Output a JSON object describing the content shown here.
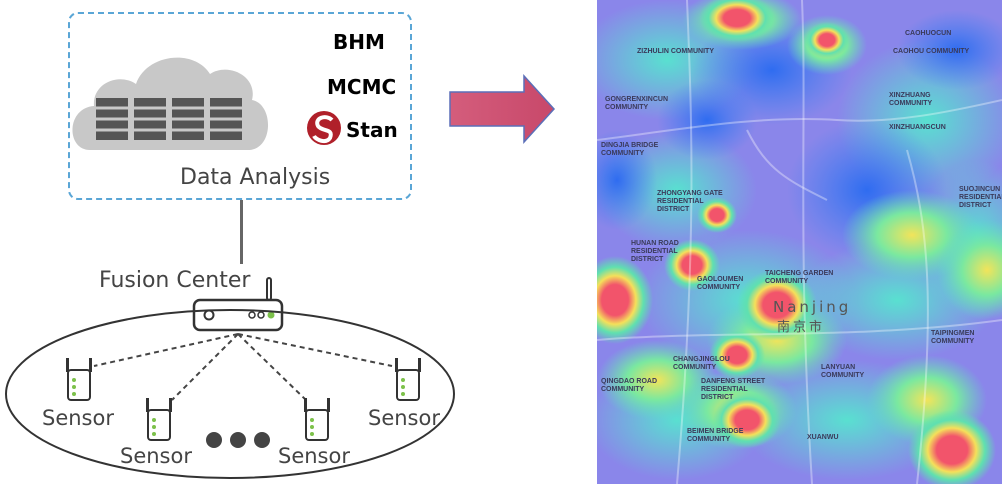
{
  "data_analysis": {
    "label": "Data Analysis",
    "tools": [
      "BHM",
      "MCMC",
      "Stan"
    ]
  },
  "fusion_center": {
    "label": "Fusion Center"
  },
  "sensors": {
    "label": "Sensor"
  },
  "map": {
    "labels": [
      "ZHONGYANG GATE RESIDENTIAL DISTRICT",
      "ZIZHULIN COMMUNITY",
      "GONGRENXINCUN COMMUNITY",
      "DINGJIA BRIDGE COMMUNITY",
      "HUNAN ROAD RESIDENTIAL DISTRICT",
      "GAOLOUMEN COMMUNITY",
      "TAICHENG GARDEN COMMUNITY",
      "CAOHOU COMMUNITY",
      "XINZHUANG COMMUNITY",
      "XINZHUANGCUN",
      "SUOJINCUN RESIDENTIAL DISTRICT",
      "TAIPINGMEN COMMUNITY",
      "CHANGJINGLOU COMMUNITY",
      "DANFENG STREET RESIDENTIAL DISTRICT",
      "LANYUAN COMMUNITY",
      "QINGDAO ROAD COMMUNITY",
      "BEIMEN BRIDGE COMMUNITY",
      "XUANWU",
      "CAOHUOCUN",
      "Nanjing",
      "南京市"
    ]
  }
}
